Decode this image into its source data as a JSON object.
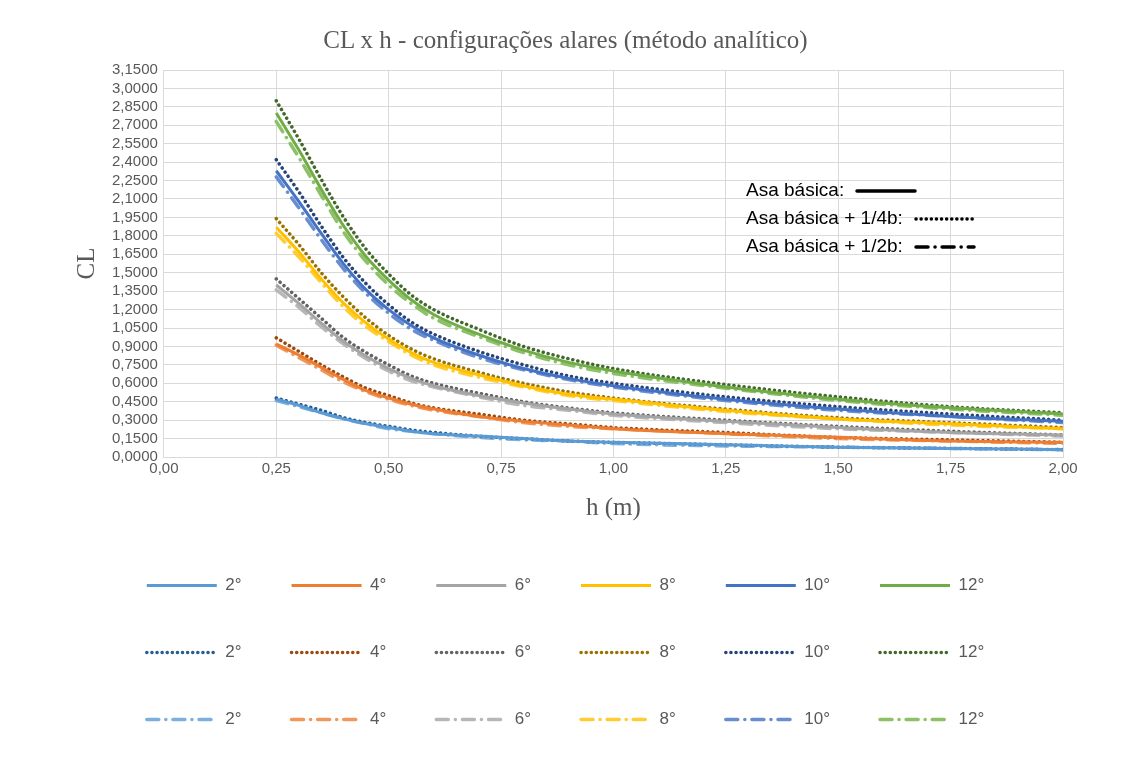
{
  "chart_data": {
    "type": "line",
    "title": "CL x h - configurações alares (método analítico)",
    "xlabel": "h (m)",
    "ylabel": "CL",
    "x": [
      0.25,
      0.3,
      0.35,
      0.4,
      0.45,
      0.5,
      0.55,
      0.6,
      0.7,
      0.8,
      0.9,
      1.0,
      1.25,
      1.5,
      1.75,
      2.0
    ],
    "xlim": [
      0,
      2
    ],
    "xticks": [
      {
        "value": 0,
        "label": "0,00"
      },
      {
        "value": 0.25,
        "label": "0,25"
      },
      {
        "value": 0.5,
        "label": "0,50"
      },
      {
        "value": 0.75,
        "label": "0,75"
      },
      {
        "value": 1,
        "label": "1,00"
      },
      {
        "value": 1.25,
        "label": "1,25"
      },
      {
        "value": 1.5,
        "label": "1,50"
      },
      {
        "value": 1.75,
        "label": "1,75"
      },
      {
        "value": 2,
        "label": "2,00"
      }
    ],
    "ylim": [
      0,
      3.15
    ],
    "yticks": [
      {
        "value": 0,
        "label": "0,0000"
      },
      {
        "value": 0.15,
        "label": "0,1500"
      },
      {
        "value": 0.3,
        "label": "0,3000"
      },
      {
        "value": 0.45,
        "label": "0,4500"
      },
      {
        "value": 0.6,
        "label": "0,6000"
      },
      {
        "value": 0.75,
        "label": "0,7500"
      },
      {
        "value": 0.9,
        "label": "0,9000"
      },
      {
        "value": 1.05,
        "label": "1,0500"
      },
      {
        "value": 1.2,
        "label": "1,2000"
      },
      {
        "value": 1.35,
        "label": "1,3500"
      },
      {
        "value": 1.5,
        "label": "1,5000"
      },
      {
        "value": 1.65,
        "label": "1,6500"
      },
      {
        "value": 1.8,
        "label": "1,8000"
      },
      {
        "value": 1.95,
        "label": "1,9500"
      },
      {
        "value": 2.1,
        "label": "2,1000"
      },
      {
        "value": 2.25,
        "label": "2,2500"
      },
      {
        "value": 2.4,
        "label": "2,4000"
      },
      {
        "value": 2.55,
        "label": "2,5500"
      },
      {
        "value": 2.7,
        "label": "2,7000"
      },
      {
        "value": 2.85,
        "label": "2,8500"
      },
      {
        "value": 3.0,
        "label": "3,0000"
      },
      {
        "value": 3.15,
        "label": "3,1500"
      }
    ],
    "grid": true,
    "legend": "bottom",
    "marker": "none",
    "annotations": [
      "Asa básica:",
      "Asa básica + 1/4b:",
      "Asa básica + 1/2b:"
    ],
    "series": [
      {
        "name": "2°",
        "color": "#5b9bd5",
        "line_style": "solid",
        "values": [
          0.47,
          0.42,
          0.36,
          0.31,
          0.27,
          0.24,
          0.21,
          0.19,
          0.17,
          0.15,
          0.13,
          0.12,
          0.1,
          0.08,
          0.07,
          0.06
        ]
      },
      {
        "name": "4°",
        "color": "#ed7d31",
        "line_style": "solid",
        "values": [
          0.92,
          0.83,
          0.73,
          0.63,
          0.54,
          0.48,
          0.43,
          0.39,
          0.33,
          0.29,
          0.26,
          0.23,
          0.19,
          0.16,
          0.13,
          0.12
        ]
      },
      {
        "name": "6°",
        "color": "#a5a5a5",
        "line_style": "solid",
        "values": [
          1.4,
          1.25,
          1.09,
          0.94,
          0.82,
          0.72,
          0.64,
          0.58,
          0.5,
          0.44,
          0.39,
          0.35,
          0.29,
          0.24,
          0.2,
          0.18
        ]
      },
      {
        "name": "8°",
        "color": "#ffc000",
        "line_style": "solid",
        "values": [
          1.87,
          1.67,
          1.45,
          1.25,
          1.09,
          0.96,
          0.85,
          0.77,
          0.67,
          0.58,
          0.51,
          0.47,
          0.38,
          0.31,
          0.27,
          0.23
        ]
      },
      {
        "name": "10°",
        "color": "#4472c4",
        "line_style": "solid",
        "values": [
          2.33,
          2.08,
          1.82,
          1.57,
          1.36,
          1.2,
          1.07,
          0.97,
          0.83,
          0.72,
          0.64,
          0.58,
          0.47,
          0.39,
          0.33,
          0.29
        ]
      },
      {
        "name": "12°",
        "color": "#70ad47",
        "line_style": "solid",
        "values": [
          2.8,
          2.5,
          2.18,
          1.88,
          1.63,
          1.44,
          1.28,
          1.16,
          1.0,
          0.87,
          0.77,
          0.7,
          0.57,
          0.47,
          0.4,
          0.35
        ]
      },
      {
        "name": "2°",
        "color": "#255e91",
        "line_style": "dotted",
        "values": [
          0.48,
          0.43,
          0.38,
          0.32,
          0.28,
          0.25,
          0.22,
          0.2,
          0.17,
          0.15,
          0.13,
          0.12,
          0.1,
          0.08,
          0.07,
          0.06
        ]
      },
      {
        "name": "4°",
        "color": "#9e480e",
        "line_style": "dotted",
        "values": [
          0.97,
          0.86,
          0.75,
          0.65,
          0.56,
          0.5,
          0.44,
          0.4,
          0.35,
          0.3,
          0.27,
          0.24,
          0.2,
          0.16,
          0.14,
          0.12
        ]
      },
      {
        "name": "6°",
        "color": "#636363",
        "line_style": "dotted",
        "values": [
          1.45,
          1.29,
          1.13,
          0.97,
          0.85,
          0.75,
          0.66,
          0.6,
          0.52,
          0.45,
          0.4,
          0.36,
          0.3,
          0.25,
          0.21,
          0.18
        ]
      },
      {
        "name": "8°",
        "color": "#997300",
        "line_style": "dotted",
        "values": [
          1.94,
          1.73,
          1.5,
          1.3,
          1.13,
          0.99,
          0.88,
          0.8,
          0.69,
          0.6,
          0.53,
          0.48,
          0.39,
          0.32,
          0.28,
          0.24
        ]
      },
      {
        "name": "10°",
        "color": "#264478",
        "line_style": "dotted",
        "values": [
          2.42,
          2.16,
          1.88,
          1.62,
          1.41,
          1.24,
          1.1,
          1.0,
          0.86,
          0.75,
          0.66,
          0.6,
          0.49,
          0.41,
          0.35,
          0.3
        ]
      },
      {
        "name": "12°",
        "color": "#43682b",
        "line_style": "dotted",
        "values": [
          2.9,
          2.59,
          2.26,
          1.95,
          1.69,
          1.49,
          1.32,
          1.2,
          1.04,
          0.9,
          0.8,
          0.72,
          0.59,
          0.49,
          0.41,
          0.36
        ]
      },
      {
        "name": "2°",
        "color": "#7cafdd",
        "line_style": "dashdot",
        "values": [
          0.46,
          0.41,
          0.36,
          0.31,
          0.27,
          0.23,
          0.21,
          0.19,
          0.16,
          0.14,
          0.13,
          0.11,
          0.09,
          0.08,
          0.07,
          0.06
        ]
      },
      {
        "name": "4°",
        "color": "#f1975a",
        "line_style": "dashdot",
        "values": [
          0.91,
          0.81,
          0.71,
          0.61,
          0.53,
          0.47,
          0.42,
          0.38,
          0.33,
          0.28,
          0.25,
          0.23,
          0.19,
          0.15,
          0.13,
          0.11
        ]
      },
      {
        "name": "6°",
        "color": "#b7b7b7",
        "line_style": "dashdot",
        "values": [
          1.36,
          1.22,
          1.06,
          0.92,
          0.8,
          0.7,
          0.62,
          0.57,
          0.49,
          0.42,
          0.38,
          0.34,
          0.28,
          0.23,
          0.2,
          0.17
        ]
      },
      {
        "name": "8°",
        "color": "#ffcd33",
        "line_style": "dashdot",
        "values": [
          1.82,
          1.63,
          1.42,
          1.22,
          1.06,
          0.94,
          0.83,
          0.75,
          0.65,
          0.57,
          0.5,
          0.46,
          0.37,
          0.31,
          0.26,
          0.23
        ]
      },
      {
        "name": "10°",
        "color": "#698ed0",
        "line_style": "dashdot",
        "values": [
          2.28,
          2.03,
          1.77,
          1.53,
          1.33,
          1.17,
          1.04,
          0.95,
          0.81,
          0.71,
          0.63,
          0.57,
          0.46,
          0.38,
          0.33,
          0.28
        ]
      },
      {
        "name": "12°",
        "color": "#8cc168",
        "line_style": "dashdot",
        "values": [
          2.73,
          2.44,
          2.13,
          1.83,
          1.59,
          1.4,
          1.25,
          1.13,
          0.98,
          0.85,
          0.75,
          0.68,
          0.56,
          0.46,
          0.39,
          0.34
        ]
      }
    ]
  }
}
